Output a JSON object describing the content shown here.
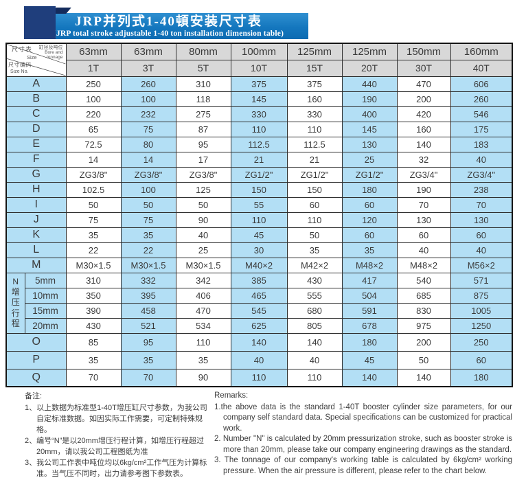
{
  "banner": {
    "title": "JRP并列式1-40頓安装尺寸表",
    "subtitle": "(JRP total stroke adjustable 1-40 ton installation dimension table)"
  },
  "colors": {
    "banner_blue": "#1477be",
    "banner_navy": "#1f3e7c",
    "cell_blue": "#b3dff5",
    "header_gray": "#d8d8d8"
  },
  "table": {
    "corner": {
      "size_cn": "尺寸表",
      "size_en": "Size",
      "bore_cn": "缸径及吨位",
      "bore_en": "Bore and\ntonnage",
      "code_cn": "尺寸编码",
      "code_en": "Size No."
    },
    "bores": [
      "63mm",
      "63mm",
      "80mm",
      "100mm",
      "125mm",
      "125mm",
      "150mm",
      "160mm"
    ],
    "tonnages": [
      "1T",
      "3T",
      "5T",
      "10T",
      "15T",
      "20T",
      "30T",
      "40T"
    ],
    "rows_top": [
      {
        "label": "A",
        "values": [
          "250",
          "260",
          "310",
          "375",
          "375",
          "440",
          "470",
          "606"
        ]
      },
      {
        "label": "B",
        "values": [
          "100",
          "100",
          "118",
          "145",
          "160",
          "190",
          "200",
          "260"
        ]
      },
      {
        "label": "C",
        "values": [
          "220",
          "232",
          "275",
          "330",
          "330",
          "400",
          "420",
          "546"
        ]
      },
      {
        "label": "D",
        "values": [
          "65",
          "75",
          "87",
          "110",
          "110",
          "145",
          "160",
          "175"
        ]
      },
      {
        "label": "E",
        "values": [
          "72.5",
          "80",
          "95",
          "112.5",
          "112.5",
          "130",
          "140",
          "183"
        ]
      },
      {
        "label": "F",
        "values": [
          "14",
          "14",
          "17",
          "21",
          "21",
          "25",
          "32",
          "40"
        ]
      },
      {
        "label": "G",
        "values": [
          "ZG3/8\"",
          "ZG3/8\"",
          "ZG3/8\"",
          "ZG1/2\"",
          "ZG1/2\"",
          "ZG1/2\"",
          "ZG3/4\"",
          "ZG3/4\""
        ]
      },
      {
        "label": "H",
        "values": [
          "102.5",
          "100",
          "125",
          "150",
          "150",
          "180",
          "190",
          "238"
        ]
      },
      {
        "label": "I",
        "values": [
          "50",
          "50",
          "50",
          "55",
          "60",
          "60",
          "70",
          "70"
        ]
      },
      {
        "label": "J",
        "values": [
          "75",
          "75",
          "90",
          "110",
          "110",
          "120",
          "130",
          "130"
        ]
      },
      {
        "label": "K",
        "values": [
          "35",
          "35",
          "40",
          "45",
          "50",
          "60",
          "60",
          "60"
        ]
      },
      {
        "label": "L",
        "values": [
          "22",
          "22",
          "25",
          "30",
          "35",
          "35",
          "40",
          "40"
        ]
      },
      {
        "label": "M",
        "values": [
          "M30×1.5",
          "M30×1.5",
          "M30×1.5",
          "M40×2",
          "M42×2",
          "M48×2",
          "M48×2",
          "M56×2"
        ]
      }
    ],
    "n_section": {
      "label": "N\n增\n压\n行\n程",
      "sub_rows": [
        {
          "label": "5mm",
          "values": [
            "310",
            "332",
            "342",
            "385",
            "430",
            "417",
            "540",
            "571"
          ]
        },
        {
          "label": "10mm",
          "values": [
            "350",
            "395",
            "406",
            "465",
            "555",
            "504",
            "685",
            "875"
          ]
        },
        {
          "label": "15mm",
          "values": [
            "390",
            "458",
            "470",
            "545",
            "680",
            "591",
            "830",
            "1005"
          ]
        },
        {
          "label": "20mm",
          "values": [
            "430",
            "521",
            "534",
            "625",
            "805",
            "678",
            "975",
            "1250"
          ]
        }
      ]
    },
    "rows_bottom": [
      {
        "label": "O",
        "values": [
          "85",
          "95",
          "110",
          "140",
          "140",
          "180",
          "200",
          "250"
        ]
      },
      {
        "label": "P",
        "values": [
          "35",
          "35",
          "35",
          "40",
          "40",
          "45",
          "50",
          "60"
        ]
      },
      {
        "label": "Q",
        "values": [
          "70",
          "70",
          "90",
          "110",
          "110",
          "140",
          "140",
          "180"
        ]
      }
    ]
  },
  "notes_cn": {
    "title": "备注:",
    "items": [
      "1、以上数据为标准型1-40T增压缸尺寸参数，为我公司自定标准数据。如因实际工作需要，可定制特殊规格。",
      "2、编号“N”是以20mm增压行程计算，如增压行程超过20mm，请以我公司工程图纸为准",
      "3、我公司工作表中吨位均以6kg/cm²工作气压为计算标准。当气压不同时，出力请参考图下参数表。"
    ]
  },
  "notes_en": {
    "title": "Remarks:",
    "items": [
      "1.the above data is the standard 1-40T booster cylinder size parameters, for our company self standard data. Special specifications can be customized for practical work.",
      "2. Number \"N\" is calculated by 20mm pressurization stroke, such as booster stroke is more than 20mm, please take our company engineering drawings as the standard.",
      "3. The tonnage of our company's working table is calculated by 6kg/cm² working pressure. When the air pressure is different, please refer to the chart below."
    ]
  }
}
